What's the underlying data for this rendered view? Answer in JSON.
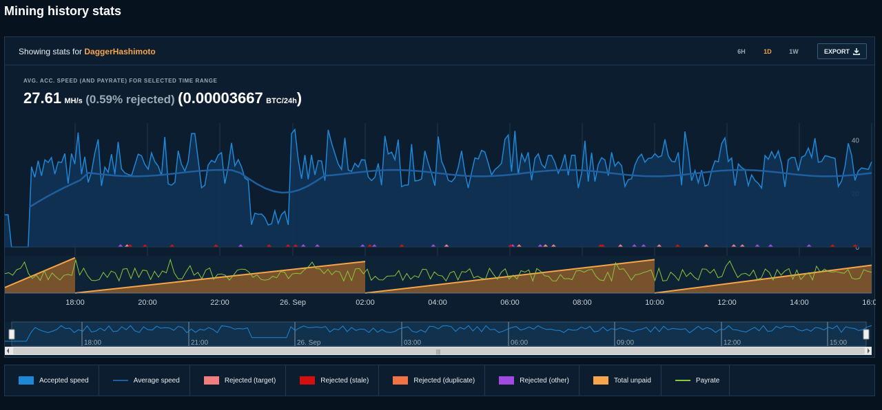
{
  "page": {
    "title": "Mining history stats"
  },
  "header": {
    "showing_prefix": "Showing stats for",
    "algorithm": "DaggerHashimoto",
    "ranges": [
      "6H",
      "1D",
      "1W"
    ],
    "active_range": "1D",
    "export_label": "EXPORT",
    "export_icon": "download-icon"
  },
  "stats": {
    "label": "AVG. ACC. SPEED (AND PAYRATE) FOR SELECTED TIME RANGE",
    "speed_value": "27.61",
    "speed_unit": "MH/s",
    "rejected_text": "(0.59% rejected)",
    "pay_open": "(",
    "payrate_value": "0.00003667",
    "payrate_unit": "BTC/24h",
    "pay_close": ")"
  },
  "legend": [
    {
      "label": "Accepted speed",
      "color": "#1e88d8",
      "kind": "box"
    },
    {
      "label": "Average speed",
      "color": "#1f5fa0",
      "kind": "line"
    },
    {
      "label": "Rejected (target)",
      "color": "#f07e7e",
      "kind": "box"
    },
    {
      "label": "Rejected (stale)",
      "color": "#d40f0f",
      "kind": "box"
    },
    {
      "label": "Rejected (duplicate)",
      "color": "#f07345",
      "kind": "box"
    },
    {
      "label": "Rejected (other)",
      "color": "#a24be0",
      "kind": "box"
    },
    {
      "label": "Total unpaid",
      "color": "#f6a54a",
      "kind": "box"
    },
    {
      "label": "Payrate",
      "color": "#8cc83c",
      "kind": "line"
    }
  ],
  "chart_data": {
    "type": "line",
    "y_axis_ticks": [
      "0",
      "20",
      "40"
    ],
    "ylim": [
      0,
      45
    ],
    "x_tick_labels": [
      "18:00",
      "20:00",
      "22:00",
      "26. Sep",
      "02:00",
      "04:00",
      "06:00",
      "08:00",
      "10:00",
      "12:00",
      "14:00",
      "16:00"
    ],
    "navigator_tick_labels": [
      "18:00",
      "21:00",
      "26. Sep",
      "03:00",
      "06:00",
      "09:00",
      "12:00",
      "15:00"
    ],
    "series": [
      {
        "name": "Accepted speed",
        "approx_level": 27.6,
        "range": [
          16,
          44
        ]
      },
      {
        "name": "Average speed",
        "approx_level": 27.6
      },
      {
        "name": "Payrate",
        "approx_level": 3.667e-05
      }
    ],
    "unpaid_cycles_start_labels": [
      "18:00",
      "02:00",
      "10:00"
    ],
    "grid": true,
    "legend_position": "bottom"
  }
}
